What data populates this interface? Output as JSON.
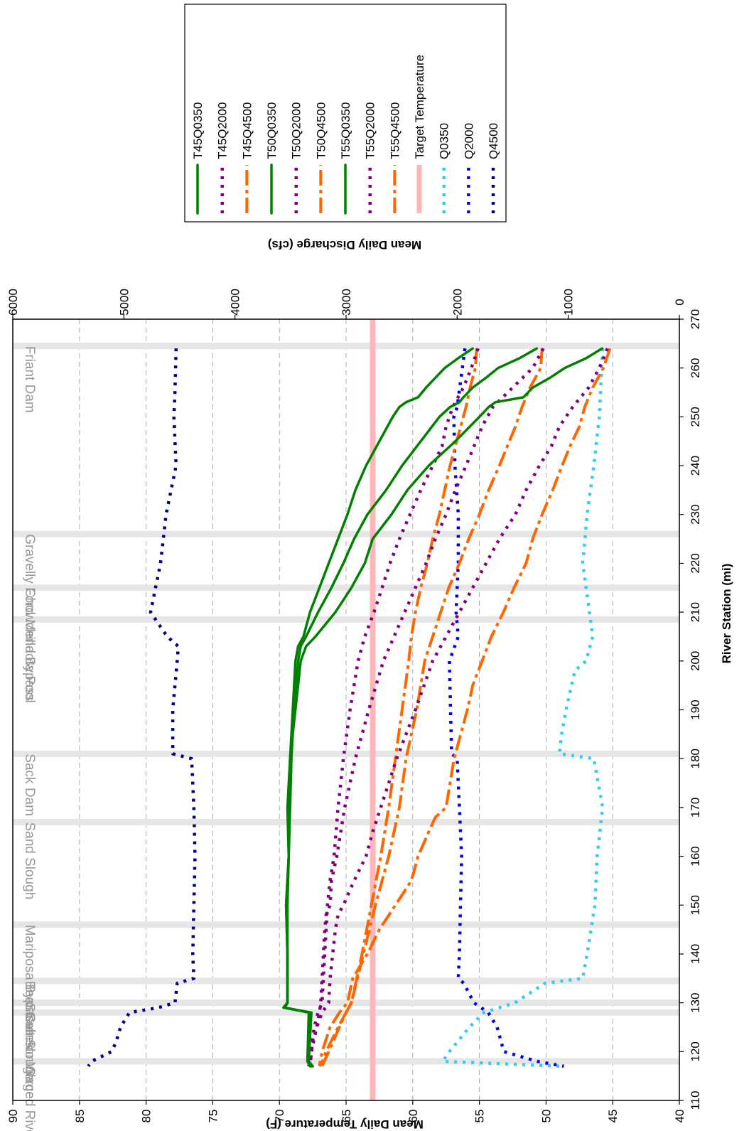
{
  "chart_data": {
    "type": "line",
    "rotated": "90-degrees-clockwise",
    "x_axis": {
      "label": "River Station (mi)",
      "range": [
        110,
        270
      ],
      "ticks": [
        110,
        120,
        130,
        140,
        150,
        160,
        170,
        180,
        190,
        200,
        210,
        220,
        230,
        240,
        250,
        260,
        270
      ]
    },
    "y_axis_left": {
      "label": "Mean Daily Temperature (F)",
      "range": [
        40,
        90
      ],
      "ticks": [
        40,
        45,
        50,
        55,
        60,
        65,
        70,
        75,
        80,
        85,
        90
      ]
    },
    "y_axis_right": {
      "label": "Mean Daily Discharge (cfs)",
      "range": [
        0,
        6000
      ],
      "ticks": [
        0,
        1000,
        2000,
        3000,
        4000,
        5000,
        6000
      ]
    },
    "grid": true,
    "target_temperature": 63,
    "stations": [
      {
        "name": "Merced River",
        "x": 118
      },
      {
        "name": "Salt Slough",
        "x": 128
      },
      {
        "name": "Stevinson Gage",
        "x": 130
      },
      {
        "name": "Bear Creek",
        "x": 134.5
      },
      {
        "name": "Mariposa Bypass",
        "x": 146
      },
      {
        "name": "Sand Slough",
        "x": 167
      },
      {
        "name": "Sack Dam",
        "x": 181
      },
      {
        "name": "Mendota Pool",
        "x": 208.5
      },
      {
        "name": "Chowchilla Bypass",
        "x": 215
      },
      {
        "name": "Gravelly Ford",
        "x": 226
      },
      {
        "name": "Friant Dam",
        "x": 264.5
      }
    ],
    "series": [
      {
        "name": "T45Q0350",
        "axis": "temp",
        "color": "#008000",
        "style": "solid",
        "x": [
          264,
          262,
          260,
          258,
          256,
          254,
          253,
          252,
          250,
          245,
          240,
          235,
          230,
          225,
          220,
          215,
          210,
          205,
          203,
          200,
          190,
          180,
          170,
          160,
          150,
          140,
          130,
          129,
          128,
          118,
          117
        ],
        "y": [
          45.8,
          47,
          48.6,
          49.7,
          51,
          51.7,
          53.8,
          54.3,
          55,
          56.8,
          58.8,
          60.4,
          61.6,
          63,
          63.6,
          64.6,
          65.8,
          67.3,
          68,
          68.4,
          68.8,
          69.2,
          69.4,
          69.3,
          69.5,
          69.4,
          69.4,
          69.7,
          67.6,
          67.8,
          67.5
        ]
      },
      {
        "name": "T50Q0350",
        "axis": "temp",
        "color": "#008000",
        "style": "solid",
        "x": [
          264,
          262,
          260,
          258,
          256,
          254,
          253,
          252,
          250,
          245,
          240,
          235,
          230,
          225,
          220,
          215,
          210,
          205,
          203,
          200,
          190,
          180,
          170,
          160,
          150,
          140,
          130,
          129,
          128,
          118,
          117
        ],
        "y": [
          50.7,
          52,
          53.6,
          54.5,
          55.5,
          56.2,
          56.5,
          57.2,
          58,
          59.4,
          60.8,
          62,
          63.4,
          64.4,
          65.2,
          66.1,
          67.1,
          68,
          68.4,
          68.6,
          68.9,
          69.1,
          69.2,
          69.3,
          69.5,
          69.4,
          69.4,
          69.6,
          67.7,
          67.8,
          67.6
        ]
      },
      {
        "name": "T55Q0350",
        "axis": "temp",
        "color": "#008000",
        "style": "solid",
        "x": [
          264,
          262,
          260,
          258,
          256,
          254,
          253,
          252,
          250,
          245,
          240,
          235,
          230,
          225,
          220,
          215,
          210,
          205,
          203,
          200,
          190,
          180,
          170,
          160,
          150,
          140,
          130,
          129,
          128,
          118,
          117
        ],
        "y": [
          55.5,
          56.6,
          57.6,
          58.3,
          59,
          59.6,
          60.5,
          61,
          61.5,
          62.5,
          63.5,
          64.3,
          64.9,
          65.6,
          66.3,
          67,
          67.7,
          68.2,
          68.6,
          68.8,
          69,
          69.2,
          69.3,
          69.3,
          69.4,
          69.4,
          69.4,
          69.6,
          67.8,
          67.9,
          67.7
        ]
      },
      {
        "name": "T45Q2000",
        "axis": "temp",
        "color": "#800080",
        "style": "dot",
        "x": [
          264,
          260,
          256,
          252,
          248,
          244,
          240,
          235,
          230,
          225,
          220,
          215,
          210,
          205,
          200,
          190,
          180,
          170,
          165,
          160,
          155,
          150,
          148,
          145,
          140,
          135,
          130,
          128,
          125,
          120,
          117
        ],
        "y": [
          45.4,
          46,
          46.8,
          48,
          49,
          49.6,
          50.5,
          51.5,
          52.3,
          53.5,
          54.5,
          55.5,
          56.5,
          57.5,
          58.5,
          59.8,
          61.2,
          62.4,
          63,
          63.5,
          64.4,
          65.2,
          65.6,
          65.8,
          66,
          66.2,
          66.3,
          66.8,
          67.2,
          67.7,
          67.8
        ]
      },
      {
        "name": "T50Q2000",
        "axis": "temp",
        "color": "#800080",
        "style": "dot",
        "x": [
          264,
          260,
          256,
          252,
          248,
          244,
          240,
          235,
          230,
          225,
          220,
          215,
          210,
          205,
          200,
          190,
          180,
          170,
          160,
          155,
          150,
          148,
          145,
          140,
          135,
          130,
          128,
          125,
          120,
          117
        ],
        "y": [
          50.2,
          51,
          52.5,
          54,
          54.8,
          55.4,
          56,
          56.8,
          57.5,
          58.3,
          59,
          59.8,
          60.6,
          61.4,
          62.2,
          63.3,
          64.3,
          65.1,
          65.7,
          66.1,
          66.2,
          66.5,
          66.6,
          66.7,
          66.8,
          66.9,
          67,
          67.2,
          67.6,
          67.7
        ]
      },
      {
        "name": "T55Q2000",
        "axis": "temp",
        "color": "#800080",
        "style": "dot",
        "x": [
          264,
          260,
          256,
          252,
          248,
          244,
          240,
          235,
          230,
          225,
          220,
          215,
          210,
          205,
          200,
          190,
          180,
          170,
          160,
          155,
          150,
          145,
          140,
          135,
          130,
          128,
          125,
          120,
          117
        ],
        "y": [
          55.1,
          55.6,
          56.2,
          57,
          57.5,
          57.8,
          58.5,
          59.4,
          60.2,
          61,
          61.7,
          62.3,
          62.9,
          63.6,
          64.1,
          64.7,
          65.2,
          65.6,
          65.9,
          66.2,
          66.4,
          66.5,
          66.6,
          66.7,
          66.8,
          67.1,
          67.4,
          67.6,
          67.7
        ]
      },
      {
        "name": "T45Q4500",
        "axis": "temp",
        "color": "#ff6600",
        "style": "dashdot",
        "x": [
          264,
          260,
          256,
          252,
          248,
          244,
          240,
          235,
          230,
          225,
          220,
          215,
          210,
          205,
          200,
          195,
          190,
          180,
          170,
          168,
          165,
          160,
          155,
          150,
          145,
          140,
          135,
          130,
          128,
          125,
          120,
          117
        ],
        "y": [
          45.2,
          45.7,
          46.5,
          47.1,
          47.5,
          48.2,
          48.8,
          49.5,
          50.3,
          51,
          51.5,
          52.4,
          53.2,
          54.1,
          54.8,
          55.5,
          55.9,
          56.9,
          57.5,
          58.3,
          58.8,
          59.6,
          60.1,
          61.3,
          62.5,
          63.4,
          64.5,
          64.9,
          65.5,
          66.2,
          66.8,
          67
        ]
      },
      {
        "name": "T50Q4500",
        "axis": "temp",
        "color": "#ff6600",
        "style": "dashdot",
        "x": [
          264,
          260,
          256,
          252,
          248,
          244,
          240,
          235,
          230,
          225,
          220,
          215,
          210,
          205,
          200,
          190,
          180,
          170,
          160,
          150,
          140,
          130,
          128,
          125,
          120,
          117
        ],
        "y": [
          50.3,
          50.4,
          51.2,
          51.8,
          52.3,
          52.9,
          53.5,
          54.3,
          55,
          55.8,
          56.5,
          57.3,
          57.9,
          58.5,
          59.1,
          59.7,
          60.5,
          61,
          61.8,
          62.8,
          63.7,
          64.6,
          65,
          65.6,
          66.5,
          66.9
        ]
      },
      {
        "name": "T55Q4500",
        "axis": "temp",
        "color": "#ff6600",
        "style": "dashdot",
        "x": [
          264,
          260,
          256,
          252,
          248,
          244,
          240,
          235,
          230,
          225,
          220,
          215,
          210,
          205,
          200,
          190,
          180,
          170,
          160,
          150,
          140,
          130,
          128,
          125,
          120,
          117
        ],
        "y": [
          55.2,
          55.3,
          55.7,
          56,
          56.4,
          56.8,
          57.2,
          57.6,
          58,
          58.5,
          58.9,
          59.4,
          59.8,
          60.1,
          60.3,
          60.8,
          61.3,
          61.8,
          62.4,
          63.1,
          63.8,
          64.6,
          65,
          65.5,
          66.3,
          66.8
        ]
      },
      {
        "name": "Q0350",
        "axis": "flow",
        "color": "#33ccee",
        "style": "dot",
        "x": [
          264,
          250,
          240,
          230,
          220,
          210,
          205,
          200,
          198,
          190,
          185,
          181,
          180,
          170,
          160,
          150,
          140,
          135,
          134,
          130,
          128,
          125,
          120,
          118,
          117
        ],
        "y": [
          690,
          720,
          770,
          830,
          870,
          810,
          780,
          840,
          940,
          1020,
          1060,
          1080,
          770,
          690,
          740,
          760,
          830,
          870,
          1210,
          1480,
          1760,
          1890,
          2070,
          2130,
          1050
        ]
      },
      {
        "name": "Q2000",
        "axis": "flow",
        "color": "#0000ee",
        "style": "dot",
        "x": [
          264,
          252,
          250,
          240,
          230,
          220,
          210,
          205,
          200,
          190,
          181,
          180,
          170,
          160,
          150,
          140,
          135,
          134,
          130,
          128,
          125,
          120,
          118,
          117
        ],
        "y": [
          1930,
          2000,
          2030,
          2020,
          1990,
          1990,
          2010,
          1990,
          2070,
          2060,
          2050,
          2000,
          1980,
          1960,
          1970,
          1980,
          1990,
          1940,
          1850,
          1720,
          1640,
          1580,
          1280,
          1040
        ]
      },
      {
        "name": "Q4500",
        "axis": "flow",
        "color": "#000080",
        "style": "dot",
        "x": [
          264,
          255,
          250,
          240,
          230,
          220,
          210,
          205,
          203,
          200,
          190,
          181,
          180,
          170,
          160,
          150,
          140,
          135,
          134,
          130,
          129,
          128,
          125,
          122,
          120,
          118,
          117
        ],
        "y": [
          4530,
          4540,
          4550,
          4530,
          4620,
          4670,
          4760,
          4610,
          4510,
          4520,
          4560,
          4560,
          4390,
          4370,
          4360,
          4370,
          4380,
          4370,
          4520,
          4540,
          4690,
          4950,
          5030,
          5070,
          5110,
          5290,
          5320
        ]
      }
    ],
    "legend": {
      "placement": "top-right",
      "entries": [
        {
          "label": "T45Q0350",
          "color": "#008000",
          "style": "solid"
        },
        {
          "label": "T45Q2000",
          "color": "#800080",
          "style": "dot"
        },
        {
          "label": "T45Q4500",
          "color": "#ff6600",
          "style": "dashdot"
        },
        {
          "label": "T50Q0350",
          "color": "#008000",
          "style": "solid"
        },
        {
          "label": "T50Q2000",
          "color": "#800080",
          "style": "dot"
        },
        {
          "label": "T50Q4500",
          "color": "#ff6600",
          "style": "dashdot"
        },
        {
          "label": "T55Q0350",
          "color": "#008000",
          "style": "solid"
        },
        {
          "label": "T55Q2000",
          "color": "#800080",
          "style": "dot"
        },
        {
          "label": "T55Q4500",
          "color": "#ff6600",
          "style": "dashdot"
        },
        {
          "label": "Target Temperature",
          "color": "#ffb6b6",
          "style": "thick"
        },
        {
          "label": "Q0350",
          "color": "#33ccee",
          "style": "dot"
        },
        {
          "label": "Q2000",
          "color": "#0000ee",
          "style": "dot"
        },
        {
          "label": "Q4500",
          "color": "#000080",
          "style": "dot"
        }
      ]
    }
  }
}
